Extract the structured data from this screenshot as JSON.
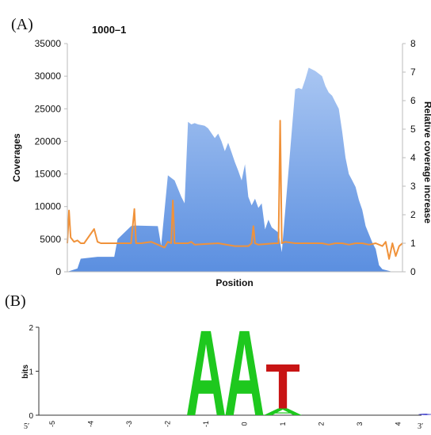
{
  "panels": {
    "a_label": "(A)",
    "b_label": "(B)"
  },
  "chart_data": [
    {
      "type": "area",
      "title": "1000–1",
      "xlabel": "Position",
      "ylabel": "Coverages",
      "y2label": "Relative coverage increase",
      "ylim": [
        0,
        35000
      ],
      "y2lim": [
        0,
        8
      ],
      "yticks": [
        "0",
        "5000",
        "10000",
        "15000",
        "20000",
        "25000",
        "30000",
        "35000"
      ],
      "y2ticks": [
        "0",
        "1",
        "2",
        "3",
        "4",
        "5",
        "6",
        "7",
        "8"
      ],
      "xlim": [
        0,
        100
      ],
      "colors": {
        "coverage": "#5b8fe0",
        "coverage_light": "#a9c6f2",
        "ratio": "#f0923a"
      },
      "series": [
        {
          "kind": "coverage",
          "x": [
            0,
            3,
            4,
            9,
            14,
            15,
            19,
            20,
            27,
            28,
            30,
            32,
            34,
            35,
            36,
            37,
            38,
            39,
            41,
            42,
            44,
            45,
            46,
            47,
            48,
            49,
            50,
            51,
            52,
            53,
            54,
            55,
            56,
            57,
            58,
            59,
            60,
            61,
            63,
            64,
            68,
            69,
            70,
            71,
            72,
            74,
            76,
            77,
            78,
            79,
            80,
            81,
            82,
            83,
            84,
            85,
            86,
            87,
            88,
            89,
            91,
            92,
            93,
            94,
            97,
            100
          ],
          "y": [
            0,
            500,
            2000,
            2300,
            2300,
            5000,
            7000,
            7100,
            7000,
            4000,
            14800,
            14000,
            11500,
            10500,
            23000,
            22600,
            22800,
            22600,
            22400,
            22000,
            20500,
            21200,
            20000,
            18500,
            19800,
            18300,
            16800,
            15500,
            14000,
            16500,
            11500,
            10200,
            11200,
            9800,
            10500,
            6500,
            8000,
            6800,
            6000,
            3000,
            28000,
            28200,
            28000,
            29500,
            31300,
            30800,
            30000,
            28500,
            27500,
            27000,
            26000,
            25000,
            21500,
            17500,
            15000,
            14000,
            13000,
            11000,
            9500,
            7000,
            4500,
            3500,
            1000,
            400,
            0,
            0
          ]
        },
        {
          "kind": "ratio",
          "x": [
            0,
            0.5,
            1,
            2,
            3,
            4,
            5,
            8,
            9,
            10,
            13,
            16,
            19,
            20,
            20.5,
            21,
            22,
            25,
            29,
            30,
            31,
            31.5,
            32,
            33,
            34,
            36,
            37,
            38,
            45,
            50,
            54,
            55,
            55.5,
            56,
            57,
            62,
            63,
            63.5,
            64,
            65,
            68,
            70,
            73,
            76,
            78,
            80,
            82,
            84,
            86,
            88,
            90,
            92,
            94,
            95,
            96,
            97,
            98,
            99,
            100
          ],
          "y": [
            1.0,
            2.15,
            1.2,
            1.05,
            1.1,
            1.0,
            1.0,
            1.5,
            1.05,
            1.0,
            1.0,
            1.0,
            1.0,
            2.2,
            1.0,
            1.0,
            1.0,
            1.05,
            0.85,
            1.05,
            1.0,
            2.5,
            1.0,
            1.0,
            1.0,
            1.0,
            1.05,
            0.95,
            1.0,
            0.9,
            0.9,
            1.0,
            1.6,
            1.0,
            0.95,
            1.0,
            1.0,
            5.3,
            1.0,
            1.05,
            1.0,
            1.0,
            1.0,
            1.0,
            0.95,
            1.0,
            1.0,
            0.95,
            1.0,
            1.0,
            0.95,
            1.0,
            0.9,
            1.05,
            0.45,
            1.0,
            0.55,
            0.9,
            1.0
          ]
        }
      ]
    },
    {
      "type": "sequence-logo",
      "ylabel": "bits",
      "ylim": [
        0,
        2
      ],
      "yticks": [
        "0",
        "1",
        "2"
      ],
      "five_prime": "5′",
      "three_prime": "3′",
      "positions": [
        "-5",
        "-4",
        "-3",
        "-2",
        "-1",
        "0",
        "1",
        "2",
        "3",
        "4",
        "5"
      ],
      "letters": [
        {
          "pos": "-1",
          "stack": [
            {
              "base": "A",
              "bits": 2.0,
              "color": "#1ec81e"
            }
          ]
        },
        {
          "pos": "0",
          "stack": [
            {
              "base": "A",
              "bits": 2.0,
              "color": "#1ec81e"
            }
          ]
        },
        {
          "pos": "1",
          "stack": [
            {
              "base": "A",
              "bits": 0.15,
              "color": "#1ec81e"
            },
            {
              "base": "T",
              "bits": 1.05,
              "color": "#c81414"
            }
          ]
        },
        {
          "pos": "5",
          "stack": [
            {
              "base": "C",
              "bits": 0.04,
              "color": "#3a3ac8"
            }
          ]
        }
      ]
    }
  ]
}
